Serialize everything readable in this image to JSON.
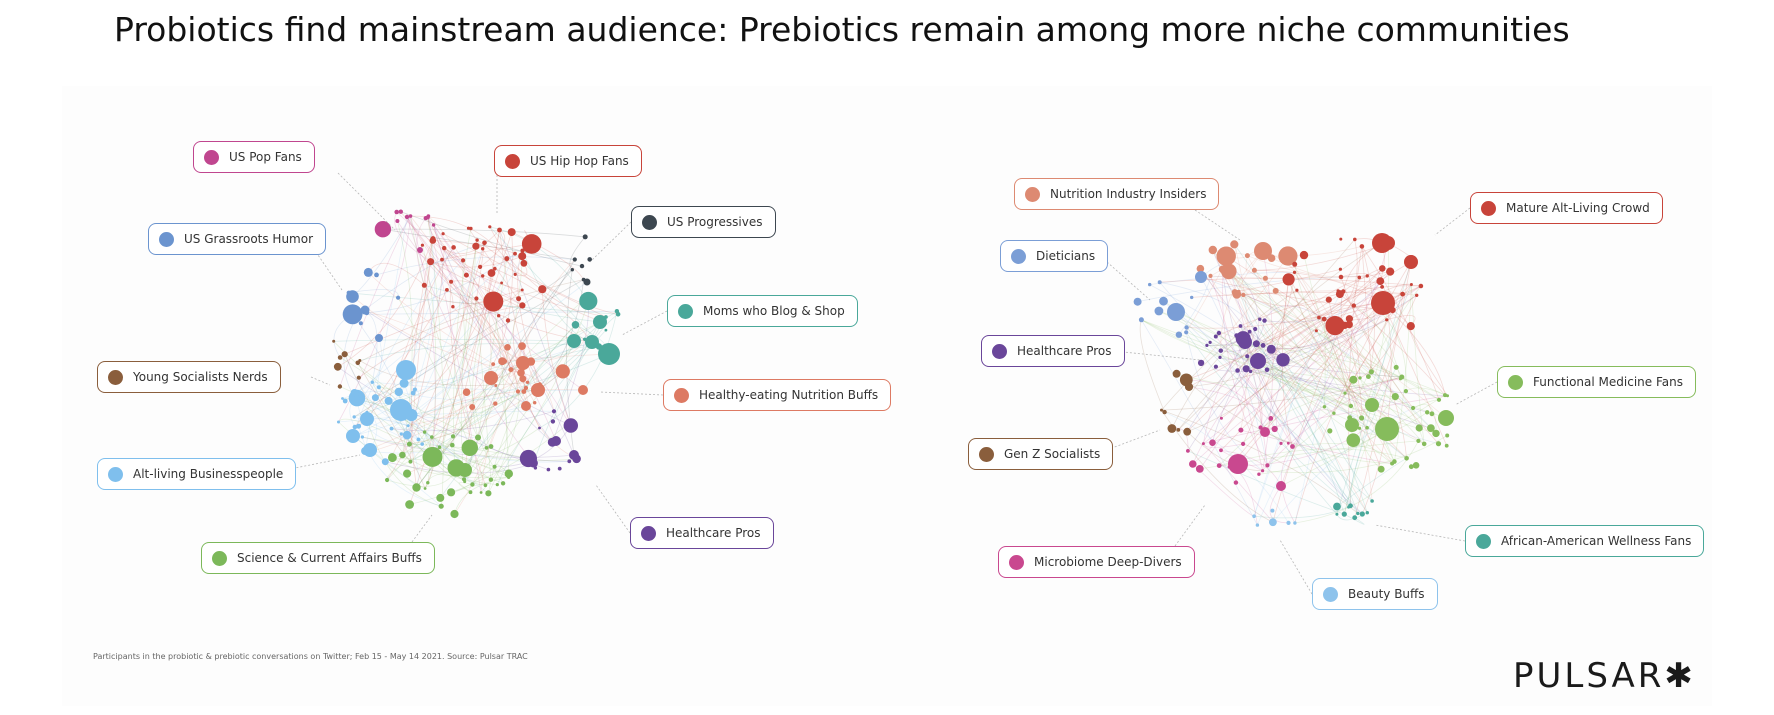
{
  "title": "Probiotics find mainstream audience: Prebiotics remain among more niche communities",
  "footnote": "Participants in the probiotic & prebiotic conversations on Twitter; Feb 15 - May 14 2021. Source: Pulsar TRAC",
  "brand": "PULSAR✱",
  "colors": {
    "us_pop": "#c0468f",
    "us_hiphop": "#c8443a",
    "us_progressives": "#3d4750",
    "us_grassroots": "#6b94cf",
    "moms": "#4aa89a",
    "young_socialists": "#8a5e3c",
    "healthy_eating": "#dd7a63",
    "alt_living_business": "#7fbfed",
    "healthcare": "#6a469a",
    "science": "#7cb85a",
    "nutrition_insiders": "#dd8a72",
    "mature_alt": "#c8443a",
    "dieticians": "#7b9ed6",
    "functional": "#86bc5c",
    "genz": "#8a5e3c",
    "african_american": "#4aa89a",
    "microbiome": "#c9488f",
    "beauty": "#8ec3ec"
  },
  "left_network": {
    "labels": [
      {
        "id": "us_pop",
        "text": "US Pop Fans",
        "color": "#c0468f"
      },
      {
        "id": "us_hiphop",
        "text": "US Hip Hop Fans",
        "color": "#c8443a"
      },
      {
        "id": "us_progressives",
        "text": "US Progressives",
        "color": "#3d4750"
      },
      {
        "id": "us_grassroots",
        "text": "US Grassroots Humor",
        "color": "#6b94cf"
      },
      {
        "id": "moms",
        "text": "Moms who Blog & Shop",
        "color": "#4aa89a"
      },
      {
        "id": "young_socialists",
        "text": "Young Socialists Nerds",
        "color": "#8a5e3c"
      },
      {
        "id": "healthy_eating",
        "text": "Healthy-eating Nutrition Buffs",
        "color": "#dd7a63"
      },
      {
        "id": "alt_living_business",
        "text": "Alt-living Businesspeople",
        "color": "#7fbfed"
      },
      {
        "id": "healthcare",
        "text": "Healthcare Pros",
        "color": "#6a469a"
      },
      {
        "id": "science",
        "text": "Science & Current Affairs Buffs",
        "color": "#7cb85a"
      }
    ]
  },
  "right_network": {
    "labels": [
      {
        "id": "nutrition_insiders",
        "text": "Nutrition Industry Insiders",
        "color": "#dd8a72"
      },
      {
        "id": "mature_alt",
        "text": "Mature Alt-Living Crowd",
        "color": "#c8443a"
      },
      {
        "id": "dieticians",
        "text": "Dieticians",
        "color": "#7b9ed6"
      },
      {
        "id": "healthcare",
        "text": "Healthcare Pros",
        "color": "#6a469a"
      },
      {
        "id": "functional",
        "text": "Functional Medicine Fans",
        "color": "#86bc5c"
      },
      {
        "id": "genz",
        "text": "Gen Z Socialists",
        "color": "#8a5e3c"
      },
      {
        "id": "african_american",
        "text": "African-American Wellness Fans",
        "color": "#4aa89a"
      },
      {
        "id": "microbiome",
        "text": "Microbiome Deep-Divers",
        "color": "#c9488f"
      },
      {
        "id": "beauty",
        "text": "Beauty Buffs",
        "color": "#8ec3ec"
      }
    ]
  }
}
